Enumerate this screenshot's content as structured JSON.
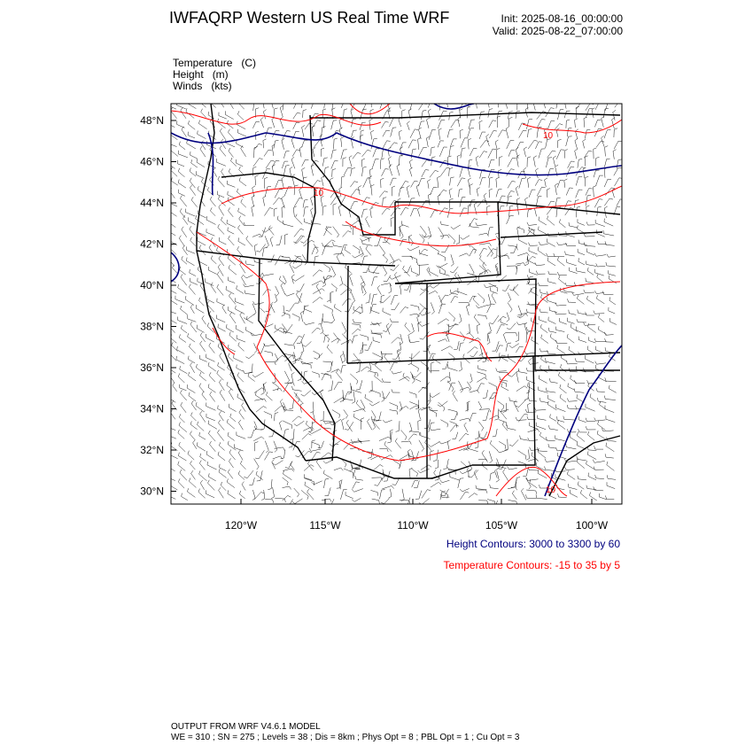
{
  "header": {
    "title": "IWFAQRP Western US Real Time WRF",
    "init": "Init: 2025-08-16_00:00:00",
    "valid": "Valid: 2025-08-22_07:00:00"
  },
  "fields": [
    {
      "label": "Temperature   (C)"
    },
    {
      "label": "Height   (m)"
    },
    {
      "label": "Winds   (kts)"
    }
  ],
  "axes": {
    "lat_labels": [
      "48°N",
      "46°N",
      "44°N",
      "42°N",
      "40°N",
      "38°N",
      "36°N",
      "34°N",
      "32°N",
      "30°N"
    ],
    "lon_labels": [
      "120°W",
      "115°W",
      "110°W",
      "105°W",
      "100°W"
    ]
  },
  "contours": {
    "height_note": "Height Contours: 3000 to 3300 by 60",
    "temp_note": "Temperature Contours: -15 to 35 by 5",
    "temp_labels": [
      "10",
      "10",
      "10"
    ],
    "height_color": "#00007f",
    "temp_color": "#ff0000"
  },
  "footer": {
    "line1": "OUTPUT FROM WRF V4.6.1 MODEL",
    "line2": "WE = 310 ; SN = 275 ; Levels = 38 ; Dis = 8km ; Phys Opt = 8 ; PBL Opt = 1 ; Cu Opt = 3"
  }
}
